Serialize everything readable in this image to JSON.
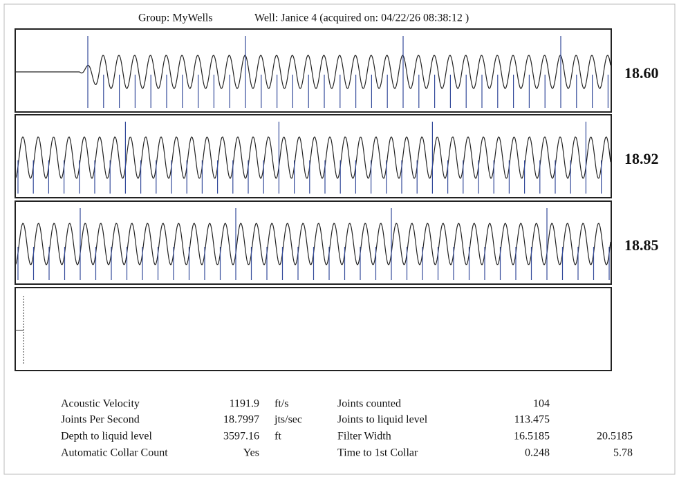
{
  "header": {
    "group": "Group: MyWells",
    "well": "Well: Janice 4 (acquired on: 04/22/26 08:38:12 )"
  },
  "panels": [
    {
      "label": "18.60"
    },
    {
      "label": "18.92"
    },
    {
      "label": "18.85"
    }
  ],
  "results": {
    "left": [
      {
        "label": "Acoustic Velocity",
        "value": "1191.9",
        "unit": "ft/s"
      },
      {
        "label": "Joints Per Second",
        "value": "18.7997",
        "unit": "jts/sec"
      },
      {
        "label": "Depth to liquid level",
        "value": "3597.16",
        "unit": "ft"
      },
      {
        "label": "Automatic Collar Count",
        "value": "Yes"
      }
    ],
    "right": [
      {
        "label": "Joints counted",
        "value": "104"
      },
      {
        "label": "Joints to liquid level",
        "value": "113.475"
      },
      {
        "label": "Filter Width",
        "value": "16.5185",
        "value2": "20.5185"
      },
      {
        "label": "Time to 1st Collar",
        "value": "0.248",
        "value2": "5.78"
      }
    ]
  }
}
